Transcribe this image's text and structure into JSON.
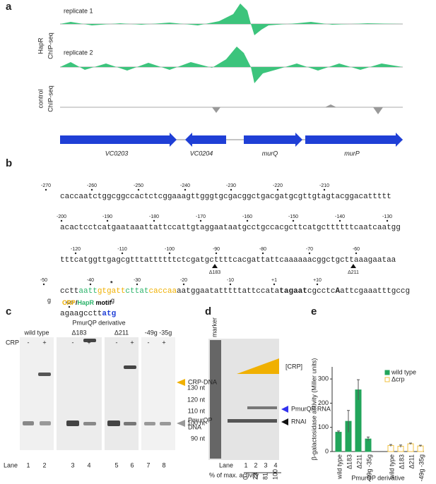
{
  "panel_a": {
    "letter": "a",
    "track_labels": [
      "replicate 1",
      "replicate 2"
    ],
    "chip_label": [
      "HapR",
      "ChIP-seq"
    ],
    "control_label": [
      "control",
      "ChIP-seq"
    ],
    "genes": [
      "VC0203",
      "VC0204",
      "murQ",
      "murP"
    ]
  },
  "panel_b": {
    "letter": "b",
    "lines": [
      "caccaatctggcggccactctcggaaagttgggtgcgacggctgacgatgcgttgtagtacggacattttt",
      "acactcctcatgaataaattattccattgtaggaataatgcctgccacgcttcatgcttttttcaatcaatgg",
      "tttcatggttgagcgtttattttttctcgatgcttttcacgattattcaaaaaacggctgcttaaagaataa"
    ],
    "positions": [
      [
        "-270",
        "-260",
        "-250",
        "-240",
        "-230",
        "-220",
        "-210"
      ],
      [
        "-200",
        "-190",
        "-180",
        "-170",
        "-160",
        "-150",
        "-140",
        "-130"
      ],
      [
        "-120",
        "-110",
        "-100",
        "-90",
        "-80",
        "-70",
        "-60"
      ],
      [
        "-50",
        "-40",
        "-30",
        "-20",
        "-10",
        "+1",
        "+10"
      ],
      [
        "+20"
      ]
    ],
    "line4": [
      {
        "text": "cctt"
      },
      {
        "text": "aatt",
        "color": "#2bb36a"
      },
      {
        "text": "gtgatt",
        "color": "#f0b000"
      },
      {
        "text": "cttat",
        "color": "#2bb36a"
      },
      {
        "text": "caccaa",
        "color": "#f0b000"
      },
      {
        "text": "aatggaatatttttattccata"
      },
      {
        "text": "tagaat",
        "weight": "bold"
      },
      {
        "text": "cgcctc"
      },
      {
        "text": "A",
        "weight": "bold"
      },
      {
        "text": "attcgaaatttgccg"
      }
    ],
    "line5": [
      {
        "text": "agaagcctt"
      },
      {
        "text": "atg",
        "weight": "bold",
        "color": "#1f3fd6"
      }
    ],
    "deletions": [
      "Δ183",
      "Δ211"
    ],
    "mutations": [
      "g",
      "g"
    ],
    "asterisk": "*",
    "motif": [
      {
        "text": "CRP",
        "color": "#f0b000"
      },
      {
        "text": "/",
        "color": "#000"
      },
      {
        "text": "HapR",
        "color": "#2bb36a"
      },
      {
        "text": " motif",
        "color": "#000"
      }
    ]
  },
  "panel_c": {
    "letter": "c",
    "title": "PmurQP derivative",
    "groups": [
      "wild type",
      "Δ183",
      "Δ211",
      "-49g -35g"
    ],
    "crp": "CRP",
    "signs": [
      "-",
      "+",
      "-",
      "+",
      "-",
      "+",
      "-",
      "+"
    ],
    "bands": [
      "CRP-DNA",
      "PmurQP",
      "DNA"
    ],
    "lane": "Lane",
    "lanes": [
      "1",
      "2",
      "3",
      "4",
      "5",
      "6",
      "7",
      "8"
    ]
  },
  "panel_d": {
    "letter": "d",
    "marker": "marker",
    "crp": "[CRP]",
    "sizes": [
      "130 nt",
      "120 nt",
      "110 nt",
      "100 nt",
      "90 nt"
    ],
    "bands": [
      "PmurQP RNA",
      "RNAI"
    ],
    "lane": "Lane",
    "lanes": [
      "1",
      "2",
      "3",
      "4"
    ],
    "activity_label": "% of max. activity",
    "activity": [
      "0",
      "23",
      "81",
      "100"
    ]
  },
  "chart_data": {
    "type": "bar",
    "letter": "e",
    "ylabel": "β-galactosidase activity (Miller units)",
    "xlabel": "PmurQP derivative",
    "categories": [
      "wild type",
      "Δ183",
      "Δ211",
      "-49g -35g"
    ],
    "series": [
      {
        "name": "wild type",
        "color": "#22a55b",
        "values": [
          80,
          125,
          255,
          52
        ],
        "errors": [
          5,
          45,
          42,
          8
        ]
      },
      {
        "name": "Δcrp",
        "color": "#f0c040",
        "values": [
          25,
          22,
          32,
          23
        ],
        "errors": [
          4,
          5,
          3,
          3
        ]
      }
    ],
    "ylim": [
      0,
      350
    ],
    "yticks": [
      0,
      100,
      200,
      300
    ],
    "legend": "top-right"
  }
}
